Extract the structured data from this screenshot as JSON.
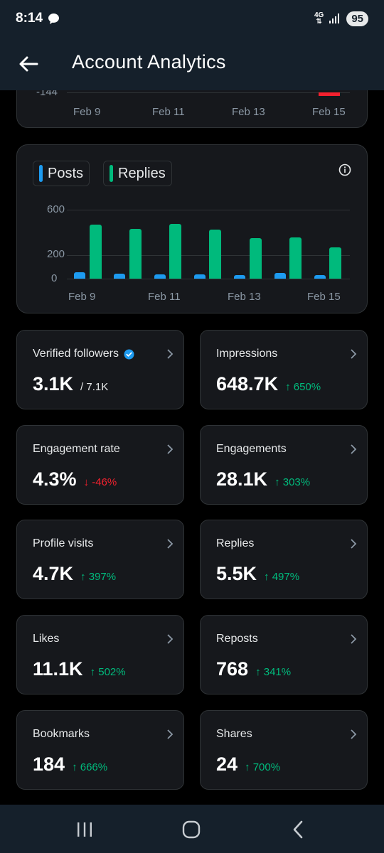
{
  "status": {
    "time": "8:14",
    "network": "4G",
    "battery": "95"
  },
  "header": {
    "title": "Account Analytics"
  },
  "chart_top": {
    "ytick": "-144",
    "xticks": [
      "Feb 9",
      "Feb 11",
      "Feb 13",
      "Feb 15"
    ]
  },
  "colors": {
    "posts": "#1d9bf0",
    "replies": "#00ba7c",
    "negative": "#f4212e"
  },
  "chart_data": {
    "type": "bar",
    "legend": [
      "Posts",
      "Replies"
    ],
    "categories": [
      "Feb 9",
      "Feb 10",
      "Feb 11",
      "Feb 12",
      "Feb 13",
      "Feb 14",
      "Feb 15"
    ],
    "xtick_labels": [
      "Feb 9",
      "Feb 11",
      "Feb 13",
      "Feb 15"
    ],
    "ytick_labels": [
      "600",
      "200",
      "0"
    ],
    "yticks": [
      600,
      200,
      0
    ],
    "ylim": [
      0,
      600
    ],
    "series": [
      {
        "name": "Posts",
        "values": [
          55,
          45,
          38,
          35,
          28,
          50,
          32
        ]
      },
      {
        "name": "Replies",
        "values": [
          470,
          430,
          475,
          425,
          355,
          360,
          275
        ]
      }
    ],
    "grid": true,
    "legend_position": "top-left"
  },
  "metrics": [
    {
      "label": "Verified followers",
      "value": "3.1K",
      "sub": "/ 7.1K",
      "verified": true
    },
    {
      "label": "Impressions",
      "value": "648.7K",
      "change": "↑ 650%",
      "dir": "up"
    },
    {
      "label": "Engagement rate",
      "value": "4.3%",
      "change": "↓ -46%",
      "dir": "down"
    },
    {
      "label": "Engagements",
      "value": "28.1K",
      "change": "↑ 303%",
      "dir": "up"
    },
    {
      "label": "Profile visits",
      "value": "4.7K",
      "change": "↑ 397%",
      "dir": "up"
    },
    {
      "label": "Replies",
      "value": "5.5K",
      "change": "↑ 497%",
      "dir": "up"
    },
    {
      "label": "Likes",
      "value": "11.1K",
      "change": "↑ 502%",
      "dir": "up"
    },
    {
      "label": "Reposts",
      "value": "768",
      "change": "↑ 341%",
      "dir": "up"
    },
    {
      "label": "Bookmarks",
      "value": "184",
      "change": "↑ 666%",
      "dir": "up"
    },
    {
      "label": "Shares",
      "value": "24",
      "change": "↑ 700%",
      "dir": "up"
    }
  ]
}
